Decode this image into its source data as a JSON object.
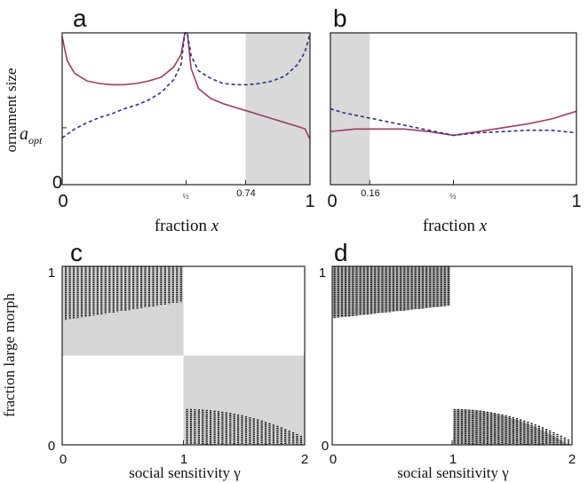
{
  "chart_data": [
    {
      "panel": "a",
      "type": "line",
      "xlabel": "fraction",
      "xlabel_var": "x",
      "ylabel": "ornament size",
      "y_ref_label": "a",
      "y_ref_sub": "opt",
      "y_ref_value": 0.45,
      "xlim": [
        0,
        1
      ],
      "ylim": [
        0,
        1.2
      ],
      "xticks": [
        "0",
        "½",
        "0.74",
        "1"
      ],
      "xtick_values": [
        0,
        0.5,
        0.74,
        1
      ],
      "yticks": [
        "0"
      ],
      "shaded_regions": [
        [
          0.74,
          1
        ]
      ],
      "series": [
        {
          "style": "solid",
          "color": "#9e3b63",
          "x": [
            0.0,
            0.02,
            0.05,
            0.1,
            0.15,
            0.2,
            0.25,
            0.3,
            0.35,
            0.4,
            0.45,
            0.48,
            0.495,
            0.505,
            0.52,
            0.55,
            0.6,
            0.65,
            0.7,
            0.75,
            0.8,
            0.85,
            0.9,
            0.95,
            0.98,
            1.0
          ],
          "y": [
            1.17,
            0.98,
            0.88,
            0.82,
            0.8,
            0.79,
            0.79,
            0.8,
            0.82,
            0.85,
            0.93,
            1.03,
            1.2,
            1.2,
            0.92,
            0.76,
            0.68,
            0.64,
            0.61,
            0.58,
            0.55,
            0.52,
            0.49,
            0.46,
            0.44,
            0.36
          ]
        },
        {
          "style": "dashed",
          "color": "#2e2e8a",
          "x": [
            0.0,
            0.05,
            0.1,
            0.15,
            0.2,
            0.25,
            0.3,
            0.35,
            0.4,
            0.45,
            0.48,
            0.495,
            0.505,
            0.52,
            0.55,
            0.6,
            0.65,
            0.7,
            0.75,
            0.8,
            0.85,
            0.9,
            0.95,
            0.98,
            1.0
          ],
          "y": [
            0.37,
            0.44,
            0.49,
            0.53,
            0.56,
            0.6,
            0.63,
            0.67,
            0.73,
            0.83,
            0.95,
            1.2,
            1.2,
            1.02,
            0.9,
            0.84,
            0.8,
            0.79,
            0.79,
            0.8,
            0.82,
            0.86,
            0.95,
            1.05,
            1.19
          ]
        }
      ]
    },
    {
      "panel": "b",
      "type": "line",
      "xlabel": "fraction",
      "xlabel_var": "x",
      "xlim": [
        0,
        1
      ],
      "ylim": [
        0,
        1.2
      ],
      "xticks": [
        "0",
        "0.16",
        "½",
        "1"
      ],
      "xtick_values": [
        0,
        0.16,
        0.5,
        1
      ],
      "shaded_regions": [
        [
          0,
          0.16
        ]
      ],
      "series": [
        {
          "style": "solid",
          "color": "#9e3b63",
          "x": [
            0.0,
            0.05,
            0.1,
            0.2,
            0.3,
            0.4,
            0.5,
            0.6,
            0.7,
            0.8,
            0.9,
            0.95,
            1.0
          ],
          "y": [
            0.42,
            0.43,
            0.44,
            0.44,
            0.44,
            0.42,
            0.39,
            0.42,
            0.45,
            0.48,
            0.52,
            0.55,
            0.58
          ]
        },
        {
          "style": "dashed",
          "color": "#2e2e8a",
          "x": [
            0.0,
            0.05,
            0.1,
            0.2,
            0.3,
            0.4,
            0.5,
            0.6,
            0.7,
            0.8,
            0.9,
            0.95,
            1.0
          ],
          "y": [
            0.6,
            0.57,
            0.55,
            0.51,
            0.47,
            0.43,
            0.39,
            0.41,
            0.42,
            0.43,
            0.43,
            0.42,
            0.41
          ]
        }
      ]
    },
    {
      "panel": "c",
      "type": "scatter",
      "xlabel": "social sensitivity γ",
      "ylabel": "fraction large morph",
      "xlim": [
        0,
        2
      ],
      "ylim": [
        0,
        1
      ],
      "xticks": [
        "0",
        "1",
        "2"
      ],
      "xtick_values": [
        0,
        1,
        2
      ],
      "yticks": [
        "0",
        "1"
      ],
      "ytick_values": [
        0,
        1
      ],
      "shaded_regions": [
        {
          "x": [
            0,
            1
          ],
          "y": [
            0.5,
            1
          ]
        },
        {
          "x": [
            1,
            2
          ],
          "y": [
            0,
            0.5
          ]
        }
      ],
      "bands": [
        {
          "x_start": 0.03,
          "x_end": 0.98,
          "count": 30,
          "y_top": [
            1.0,
            1.0
          ],
          "y_bottom": [
            0.7,
            0.8
          ]
        },
        {
          "x_start": 1.03,
          "x_end": 1.97,
          "count": 30,
          "y_top": [
            0.2,
            0.05
          ],
          "y_bottom": [
            0.0,
            0.0
          ]
        }
      ]
    },
    {
      "panel": "d",
      "type": "scatter",
      "xlabel": "social sensitivity γ",
      "xlim": [
        0,
        2
      ],
      "ylim": [
        0,
        1
      ],
      "xticks": [
        "0",
        "1",
        "2"
      ],
      "xtick_values": [
        0,
        1,
        2
      ],
      "yticks": [
        "0",
        "1"
      ],
      "ytick_values": [
        0,
        1
      ],
      "bands": [
        {
          "x_start": 0.02,
          "x_end": 0.97,
          "count": 32,
          "y_top": [
            1.0,
            1.0
          ],
          "y_bottom": [
            0.71,
            0.78
          ],
          "grey_fill": true
        },
        {
          "x_start": 1.02,
          "x_end": 1.97,
          "count": 32,
          "y_top": [
            0.2,
            0.03
          ],
          "y_bottom": [
            0.0,
            0.0
          ],
          "grey_fill": true
        }
      ]
    }
  ]
}
